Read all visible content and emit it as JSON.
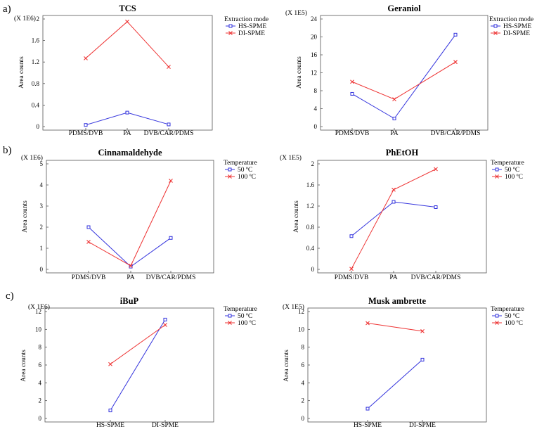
{
  "section_labels": [
    "a)",
    "b)",
    "c)"
  ],
  "chart_data": [
    {
      "type": "line",
      "title": "TCS",
      "multiplier": "(X 1E6)",
      "ylabel": "Area counts",
      "xlabel": "",
      "categories": [
        "PDMS/DVB",
        "PA",
        "DVB/CAR/PDMS"
      ],
      "ylim": [
        0,
        2
      ],
      "yticks": [
        0,
        0.4,
        0.8,
        1.2,
        1.6,
        2
      ],
      "ytick_labels": [
        "0",
        "0.4",
        "0.8",
        "1.2",
        "1.6",
        "2"
      ],
      "legend_title": "Extraction mode",
      "series": [
        {
          "name": "HS-SPME",
          "color": "#3333dd",
          "marker": "square",
          "values": [
            0.03,
            0.26,
            0.04
          ]
        },
        {
          "name": "DI-SPME",
          "color": "#ee3333",
          "marker": "x",
          "values": [
            1.27,
            1.95,
            1.11
          ]
        }
      ]
    },
    {
      "type": "line",
      "title": "Geraniol",
      "multiplier": "(X 1E5)",
      "ylabel": "Area counts",
      "xlabel": "",
      "categories": [
        "PDMS/DVB",
        "PA",
        "DVB/CAR/PDMS"
      ],
      "ylim": [
        0,
        24
      ],
      "yticks": [
        0,
        4,
        8,
        12,
        16,
        20,
        24
      ],
      "ytick_labels": [
        "0",
        "4",
        "8",
        "12",
        "16",
        "20",
        "24"
      ],
      "legend_title": "Extraction mode",
      "series": [
        {
          "name": "HS-SPME",
          "color": "#3333dd",
          "marker": "square",
          "values": [
            7.3,
            1.8,
            20.5
          ]
        },
        {
          "name": "DI-SPME",
          "color": "#ee3333",
          "marker": "x",
          "values": [
            10.0,
            6.1,
            14.4
          ]
        }
      ]
    },
    {
      "type": "line",
      "title": "Cinnamaldehyde",
      "multiplier": "(X 1E6)",
      "ylabel": "Area counts",
      "xlabel": "",
      "categories": [
        "PDMS/DVB",
        "PA",
        "DVB/CAR/PDMS"
      ],
      "ylim": [
        0,
        5
      ],
      "yticks": [
        0,
        1,
        2,
        3,
        4,
        5
      ],
      "ytick_labels": [
        "0",
        "1",
        "2",
        "3",
        "4",
        "5"
      ],
      "legend_title": "Temperature",
      "series": [
        {
          "name": "50 ºC",
          "color": "#3333dd",
          "marker": "square",
          "values": [
            2.0,
            0.13,
            1.49
          ]
        },
        {
          "name": "100 ºC",
          "color": "#ee3333",
          "marker": "x",
          "values": [
            1.3,
            0.17,
            4.2
          ]
        }
      ]
    },
    {
      "type": "line",
      "title": "PhEtOH",
      "multiplier": "(X 1E5)",
      "ylabel": "Area counts",
      "xlabel": "",
      "categories": [
        "PDMS/DVB",
        "PA",
        "DVB/CAR/PDMS"
      ],
      "ylim": [
        0,
        2
      ],
      "yticks": [
        0,
        0.4,
        0.8,
        1.2,
        1.6,
        2
      ],
      "ytick_labels": [
        "0",
        "0.4",
        "0.8",
        "1.2",
        "1.6",
        "2"
      ],
      "legend_title": "Temperature",
      "series": [
        {
          "name": "50 ºC",
          "color": "#3333dd",
          "marker": "square",
          "values": [
            0.63,
            1.28,
            1.18
          ]
        },
        {
          "name": "100 ºC",
          "color": "#ee3333",
          "marker": "x",
          "values": [
            0.01,
            1.51,
            1.9
          ]
        }
      ]
    },
    {
      "type": "line",
      "title": "iBuP",
      "multiplier": "(X 1E6)",
      "ylabel": "Area counts",
      "xlabel": "",
      "categories": [
        "HS-SPME",
        "DI-SPME"
      ],
      "ylim": [
        0,
        12
      ],
      "yticks": [
        0,
        2,
        4,
        6,
        8,
        10,
        12
      ],
      "ytick_labels": [
        "0",
        "2",
        "4",
        "6",
        "8",
        "10",
        "12"
      ],
      "legend_title": "Temperature",
      "series": [
        {
          "name": "50 ºC",
          "color": "#3333dd",
          "marker": "square",
          "values": [
            0.9,
            11.1
          ]
        },
        {
          "name": "100 ºC",
          "color": "#ee3333",
          "marker": "x",
          "values": [
            6.1,
            10.5
          ]
        }
      ]
    },
    {
      "type": "line",
      "title": "Musk ambrette",
      "multiplier": "(X 1E5)",
      "ylabel": "Area counts",
      "xlabel": "",
      "categories": [
        "HS-SPME",
        "DI-SPME"
      ],
      "ylim": [
        0,
        12
      ],
      "yticks": [
        0,
        2,
        4,
        6,
        8,
        10,
        12
      ],
      "ytick_labels": [
        "0",
        "2",
        "4",
        "6",
        "8",
        "10",
        "12"
      ],
      "legend_title": "Temperature",
      "series": [
        {
          "name": "50 ºC",
          "color": "#3333dd",
          "marker": "square",
          "values": [
            1.1,
            6.6
          ]
        },
        {
          "name": "100 ºC",
          "color": "#ee3333",
          "marker": "x",
          "values": [
            10.7,
            9.8
          ]
        }
      ]
    }
  ]
}
